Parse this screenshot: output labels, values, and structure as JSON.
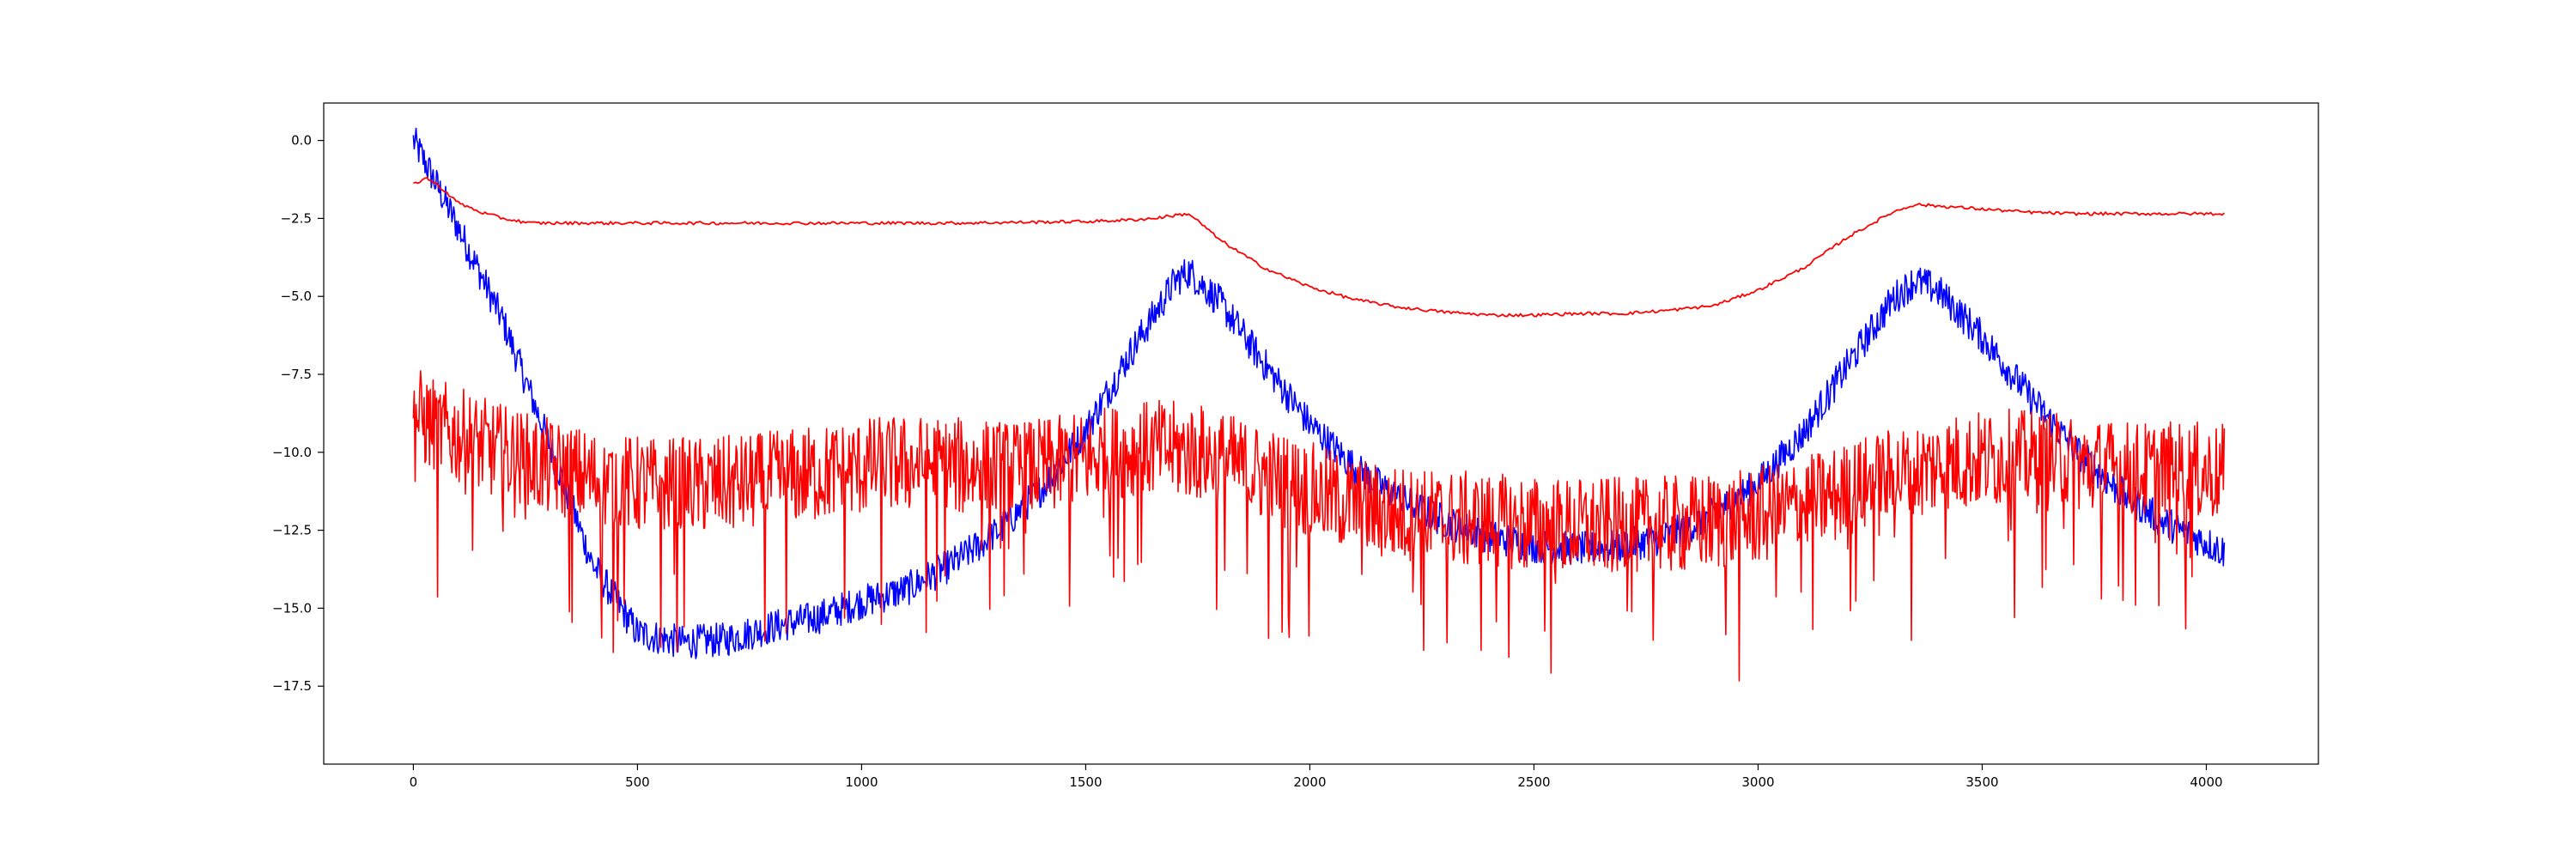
{
  "chart_data": {
    "type": "line",
    "title": "",
    "xlabel": "",
    "ylabel": "",
    "xlim": [
      -200,
      4250
    ],
    "ylim": [
      -20,
      1.2
    ],
    "xticks": [
      0,
      500,
      1000,
      1500,
      2000,
      2500,
      3000,
      3500,
      4000
    ],
    "xtick_labels": [
      "0",
      "500",
      "1000",
      "1500",
      "2000",
      "2500",
      "3000",
      "3500",
      "4000"
    ],
    "yticks": [
      0.0,
      -2.5,
      -5.0,
      -7.5,
      -10.0,
      -12.5,
      -15.0,
      -17.5
    ],
    "ytick_labels": [
      "0.0",
      "−2.5",
      "−5.0",
      "−7.5",
      "−10.0",
      "−12.5",
      "−15.0",
      "−17.5"
    ],
    "grid": false,
    "legend": "none",
    "colors": {
      "blue": "#0000ff",
      "red": "#ff0000"
    },
    "series": [
      {
        "color": "#0000ff",
        "noise": 0.55,
        "x": [
          0,
          30,
          100,
          200,
          300,
          400,
          500,
          600,
          700,
          800,
          900,
          1000,
          1100,
          1200,
          1300,
          1400,
          1500,
          1600,
          1700,
          1730,
          1800,
          1900,
          2000,
          2100,
          2200,
          2300,
          2400,
          2500,
          2600,
          2700,
          2800,
          2900,
          3000,
          3100,
          3200,
          3300,
          3350,
          3400,
          3500,
          3600,
          3700,
          3800,
          3900,
          4000,
          4040
        ],
        "y": [
          0.0,
          -0.8,
          -2.8,
          -5.8,
          -9.6,
          -13.6,
          -15.8,
          -16.1,
          -16.0,
          -15.6,
          -15.3,
          -14.8,
          -14.4,
          -13.6,
          -12.6,
          -11.2,
          -9.3,
          -6.8,
          -4.5,
          -4.2,
          -5.2,
          -7.2,
          -9.1,
          -10.5,
          -11.5,
          -12.2,
          -12.7,
          -13.0,
          -13.1,
          -13.0,
          -12.7,
          -12.0,
          -11.0,
          -9.4,
          -7.2,
          -5.1,
          -4.5,
          -4.8,
          -6.3,
          -8.1,
          -9.8,
          -11.2,
          -12.2,
          -12.9,
          -13.2
        ]
      },
      {
        "color": "#ff0000",
        "noise": 1.6,
        "x": [
          0,
          50,
          150,
          250,
          350,
          450,
          550,
          650,
          750,
          850,
          950,
          1050,
          1150,
          1250,
          1350,
          1450,
          1550,
          1650,
          1750,
          1850,
          1950,
          2050,
          2150,
          2250,
          2350,
          2450,
          2550,
          2650,
          2750,
          2850,
          2950,
          3050,
          3150,
          3250,
          3350,
          3450,
          3550,
          3650,
          3750,
          3850,
          3950,
          4040
        ],
        "y": [
          -8.8,
          -9.2,
          -9.8,
          -10.3,
          -10.7,
          -11.0,
          -11.1,
          -11.1,
          -11.0,
          -10.8,
          -10.6,
          -10.4,
          -10.4,
          -10.5,
          -10.6,
          -10.4,
          -10.1,
          -9.9,
          -10.0,
          -10.5,
          -11.0,
          -11.5,
          -11.9,
          -12.1,
          -12.2,
          -12.3,
          -12.4,
          -12.4,
          -12.4,
          -12.3,
          -12.2,
          -11.9,
          -11.5,
          -11.0,
          -10.6,
          -10.3,
          -10.2,
          -10.3,
          -10.5,
          -10.6,
          -10.6,
          -10.7
        ]
      },
      {
        "color": "#ff0000",
        "noise": 0.05,
        "x": [
          0,
          30,
          60,
          100,
          150,
          200,
          260,
          400,
          800,
          1200,
          1500,
          1600,
          1650,
          1700,
          1730,
          1760,
          1800,
          1900,
          2000,
          2100,
          2200,
          2300,
          2400,
          2500,
          2600,
          2700,
          2800,
          2900,
          3000,
          3100,
          3200,
          3300,
          3350,
          3400,
          3500,
          3600,
          3700,
          3800,
          3900,
          4000,
          4040
        ],
        "y": [
          -1.4,
          -1.2,
          -1.5,
          -2.0,
          -2.3,
          -2.5,
          -2.65,
          -2.65,
          -2.65,
          -2.65,
          -2.6,
          -2.55,
          -2.5,
          -2.4,
          -2.35,
          -2.7,
          -3.2,
          -4.1,
          -4.7,
          -5.1,
          -5.35,
          -5.5,
          -5.6,
          -5.6,
          -5.55,
          -5.55,
          -5.45,
          -5.3,
          -4.8,
          -4.1,
          -3.1,
          -2.3,
          -2.05,
          -2.1,
          -2.2,
          -2.3,
          -2.35,
          -2.35,
          -2.35,
          -2.35,
          -2.35
        ]
      }
    ]
  }
}
